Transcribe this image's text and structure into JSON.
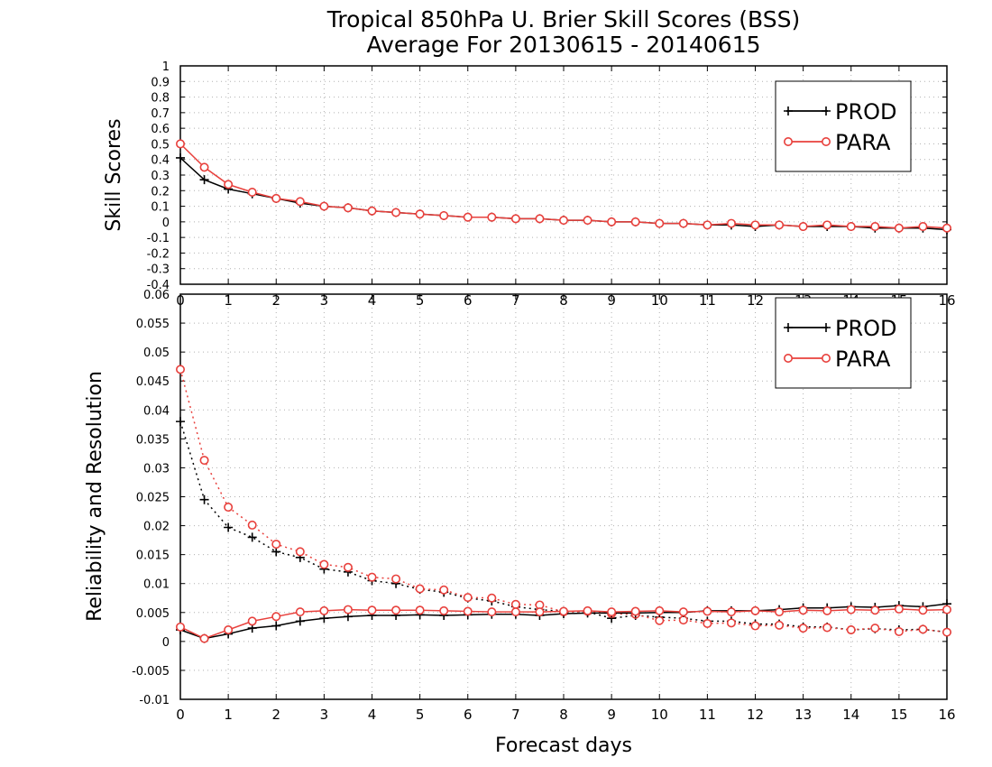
{
  "figure": {
    "title_line1": "Tropical 850hPa U. Brier Skill Scores (BSS)",
    "title_line2": "Average For 20130615 - 20140615"
  },
  "colors": {
    "PROD": "#000000",
    "PARA": "#e8403c",
    "grid": "#b0b0b0"
  },
  "chart_data": [
    {
      "type": "line",
      "panel": "top",
      "ylabel": "Skill Scores",
      "xlabel": "",
      "ylim": [
        -0.4,
        1.0
      ],
      "yticks": [
        "-0.4",
        "-0.3",
        "-0.2",
        "-0.1",
        "0",
        "0.1",
        "0.2",
        "0.3",
        "0.4",
        "0.5",
        "0.6",
        "0.7",
        "0.8",
        "0.9",
        "1"
      ],
      "xlim": [
        0,
        16
      ],
      "xticks": [
        "0",
        "1",
        "2",
        "3",
        "4",
        "5",
        "6",
        "7",
        "8",
        "9",
        "10",
        "11",
        "12",
        "13",
        "14",
        "15",
        "16"
      ],
      "grid": true,
      "legend": {
        "position": "top-right",
        "entries": [
          "PROD",
          "PARA"
        ]
      },
      "x": [
        0,
        0.5,
        1,
        1.5,
        2,
        2.5,
        3,
        3.5,
        4,
        4.5,
        5,
        5.5,
        6,
        6.5,
        7,
        7.5,
        8,
        8.5,
        9,
        9.5,
        10,
        10.5,
        11,
        11.5,
        12,
        12.5,
        13,
        13.5,
        14,
        14.5,
        15,
        15.5,
        16
      ],
      "series": [
        {
          "name": "PROD",
          "marker": "plus",
          "style": "solid",
          "values": [
            0.41,
            0.27,
            0.21,
            0.18,
            0.15,
            0.12,
            0.1,
            0.09,
            0.07,
            0.06,
            0.05,
            0.04,
            0.03,
            0.03,
            0.02,
            0.02,
            0.01,
            0.01,
            0.0,
            0.0,
            -0.01,
            -0.01,
            -0.02,
            -0.02,
            -0.03,
            -0.02,
            -0.03,
            -0.03,
            -0.03,
            -0.04,
            -0.04,
            -0.04,
            -0.05
          ]
        },
        {
          "name": "PARA",
          "marker": "circle",
          "style": "solid",
          "values": [
            0.5,
            0.35,
            0.24,
            0.19,
            0.15,
            0.13,
            0.1,
            0.09,
            0.07,
            0.06,
            0.05,
            0.04,
            0.03,
            0.03,
            0.02,
            0.02,
            0.01,
            0.01,
            0.0,
            0.0,
            -0.01,
            -0.01,
            -0.02,
            -0.01,
            -0.02,
            -0.02,
            -0.03,
            -0.02,
            -0.03,
            -0.03,
            -0.04,
            -0.03,
            -0.04
          ]
        }
      ]
    },
    {
      "type": "line",
      "panel": "bottom",
      "ylabel": "Reliability and Resolution",
      "xlabel": "Forecast days",
      "ylim": [
        -0.01,
        0.06
      ],
      "yticks": [
        "-0.01",
        "-0.005",
        "0",
        "0.005",
        "0.01",
        "0.015",
        "0.02",
        "0.025",
        "0.03",
        "0.035",
        "0.04",
        "0.045",
        "0.05",
        "0.055",
        "0.06"
      ],
      "xlim": [
        0,
        16
      ],
      "xticks": [
        "0",
        "1",
        "2",
        "3",
        "4",
        "5",
        "6",
        "7",
        "8",
        "9",
        "10",
        "11",
        "12",
        "13",
        "14",
        "15",
        "16"
      ],
      "grid": true,
      "legend": {
        "position": "top-right",
        "entries": [
          "PROD",
          "PARA"
        ]
      },
      "x": [
        0,
        0.5,
        1,
        1.5,
        2,
        2.5,
        3,
        3.5,
        4,
        4.5,
        5,
        5.5,
        6,
        6.5,
        7,
        7.5,
        8,
        8.5,
        9,
        9.5,
        10,
        10.5,
        11,
        11.5,
        12,
        12.5,
        13,
        13.5,
        14,
        14.5,
        15,
        15.5,
        16
      ],
      "series": [
        {
          "name": "PROD",
          "quantity": "resolution",
          "marker": "plus",
          "style": "dotted",
          "values": [
            0.038,
            0.0245,
            0.0197,
            0.018,
            0.0155,
            0.0145,
            0.0125,
            0.012,
            0.0105,
            0.01,
            0.009,
            0.0085,
            0.0075,
            0.007,
            0.006,
            0.0055,
            0.0052,
            0.0051,
            0.004,
            0.0045,
            0.0042,
            0.004,
            0.0035,
            0.0035,
            0.003,
            0.003,
            0.0025,
            0.0025,
            0.002,
            0.0022,
            0.002,
            0.0021,
            0.0016
          ]
        },
        {
          "name": "PARA",
          "quantity": "resolution",
          "marker": "circle",
          "style": "dotted",
          "values": [
            0.047,
            0.0313,
            0.0232,
            0.0201,
            0.0168,
            0.0155,
            0.0133,
            0.0128,
            0.0111,
            0.0108,
            0.0091,
            0.0089,
            0.0076,
            0.0075,
            0.0064,
            0.0063,
            0.0051,
            0.0052,
            0.0048,
            0.0047,
            0.0036,
            0.0037,
            0.0031,
            0.0032,
            0.0027,
            0.0028,
            0.0023,
            0.0024,
            0.002,
            0.0023,
            0.0017,
            0.0021,
            0.0016
          ]
        },
        {
          "name": "PROD",
          "quantity": "reliability",
          "marker": "plus",
          "style": "solid",
          "values": [
            0.002,
            0.0005,
            0.0013,
            0.0023,
            0.0027,
            0.0035,
            0.004,
            0.0043,
            0.0045,
            0.0045,
            0.0046,
            0.0045,
            0.0046,
            0.0047,
            0.0047,
            0.0045,
            0.0048,
            0.0049,
            0.0049,
            0.0049,
            0.005,
            0.005,
            0.0053,
            0.0053,
            0.0053,
            0.0055,
            0.0058,
            0.0058,
            0.006,
            0.0059,
            0.0062,
            0.006,
            0.0065
          ]
        },
        {
          "name": "PARA",
          "quantity": "reliability",
          "marker": "circle",
          "style": "solid",
          "values": [
            0.0025,
            0.0005,
            0.002,
            0.0035,
            0.0043,
            0.0051,
            0.0053,
            0.0055,
            0.0054,
            0.0054,
            0.0054,
            0.0053,
            0.0052,
            0.0051,
            0.0051,
            0.0051,
            0.0052,
            0.0053,
            0.0051,
            0.0052,
            0.0053,
            0.0051,
            0.0052,
            0.0051,
            0.0053,
            0.0051,
            0.0054,
            0.0053,
            0.0055,
            0.0054,
            0.0056,
            0.0054,
            0.0055
          ]
        }
      ]
    }
  ]
}
